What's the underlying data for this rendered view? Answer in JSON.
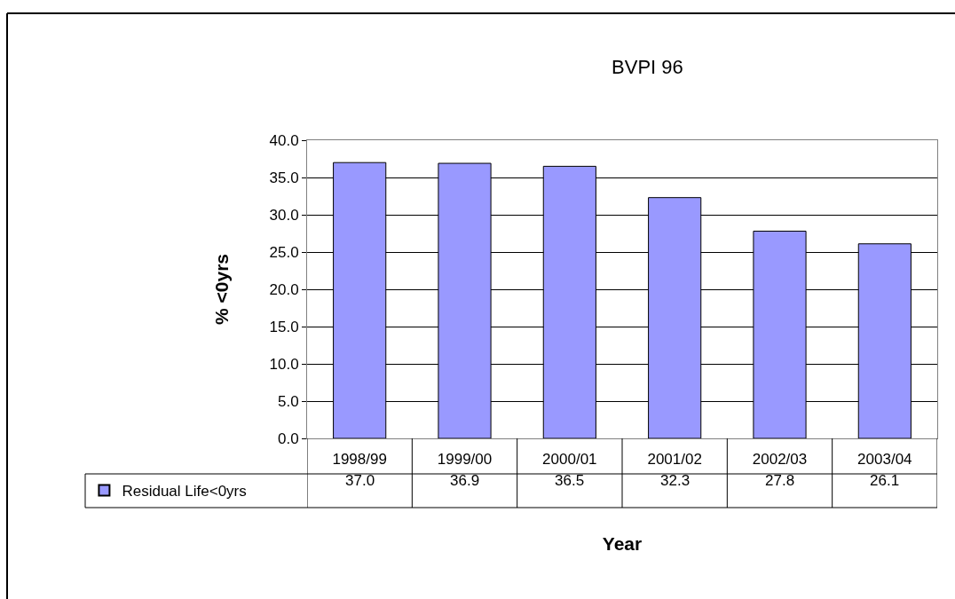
{
  "chart_data": {
    "type": "bar",
    "title": "BVPI 96",
    "xlabel": "Year",
    "ylabel": "% <0yrs",
    "categories": [
      "1998/99",
      "1999/00",
      "2000/01",
      "2001/02",
      "2002/03",
      "2003/04"
    ],
    "series": [
      {
        "name": "Residual Life<0yrs",
        "color": "#9999ff",
        "values": [
          37.0,
          36.9,
          36.5,
          32.3,
          27.8,
          26.1
        ],
        "value_labels": [
          "37.0",
          "36.9",
          "36.5",
          "32.3",
          "27.8",
          "26.1"
        ]
      }
    ],
    "ylim": [
      0,
      40
    ],
    "yticks": [
      {
        "value": 0,
        "label": "0.0"
      },
      {
        "value": 5,
        "label": "5.0"
      },
      {
        "value": 10,
        "label": "10.0"
      },
      {
        "value": 15,
        "label": "15.0"
      },
      {
        "value": 20,
        "label": "20.0"
      },
      {
        "value": 25,
        "label": "25.0"
      },
      {
        "value": 30,
        "label": "30.0"
      },
      {
        "value": 35,
        "label": "35.0"
      },
      {
        "value": 40,
        "label": "40.0"
      }
    ],
    "grid": "y",
    "legend": "bottom"
  }
}
